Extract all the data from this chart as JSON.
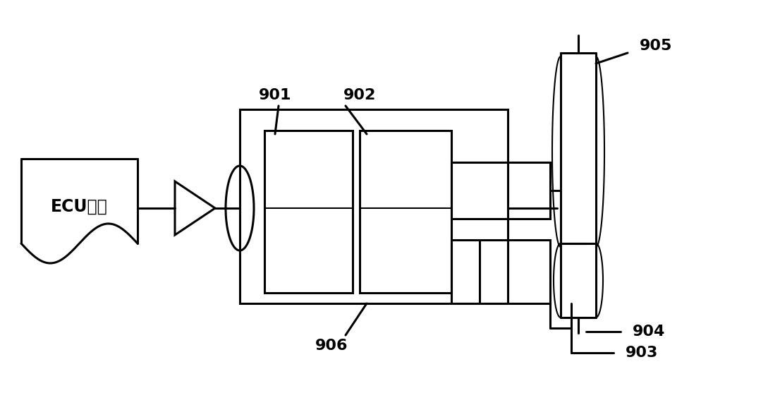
{
  "bg_color": "#ffffff",
  "line_color": "#000000",
  "lw": 2.2,
  "lw_thin": 1.5,
  "ecu_text": "ECU指令",
  "label_font_size": 16,
  "labels": [
    "901",
    "902",
    "903",
    "904",
    "905",
    "906"
  ]
}
